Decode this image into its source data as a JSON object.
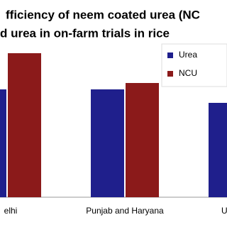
{
  "chart_data": {
    "type": "bar",
    "title": [
      "fficiency of neem coated urea (NC",
      "d urea in on-farm trials in rice"
    ],
    "categories": [
      "elhi",
      "Punjab and Haryana",
      "Utt"
    ],
    "series": [
      {
        "name": "Urea",
        "color": "#1f1f8c",
        "values": [
          152,
          152,
          133
        ]
      },
      {
        "name": "NCU",
        "color": "#8b1a1a",
        "values": [
          203,
          161,
          null
        ]
      }
    ],
    "ylim": [
      0,
      270
    ]
  }
}
